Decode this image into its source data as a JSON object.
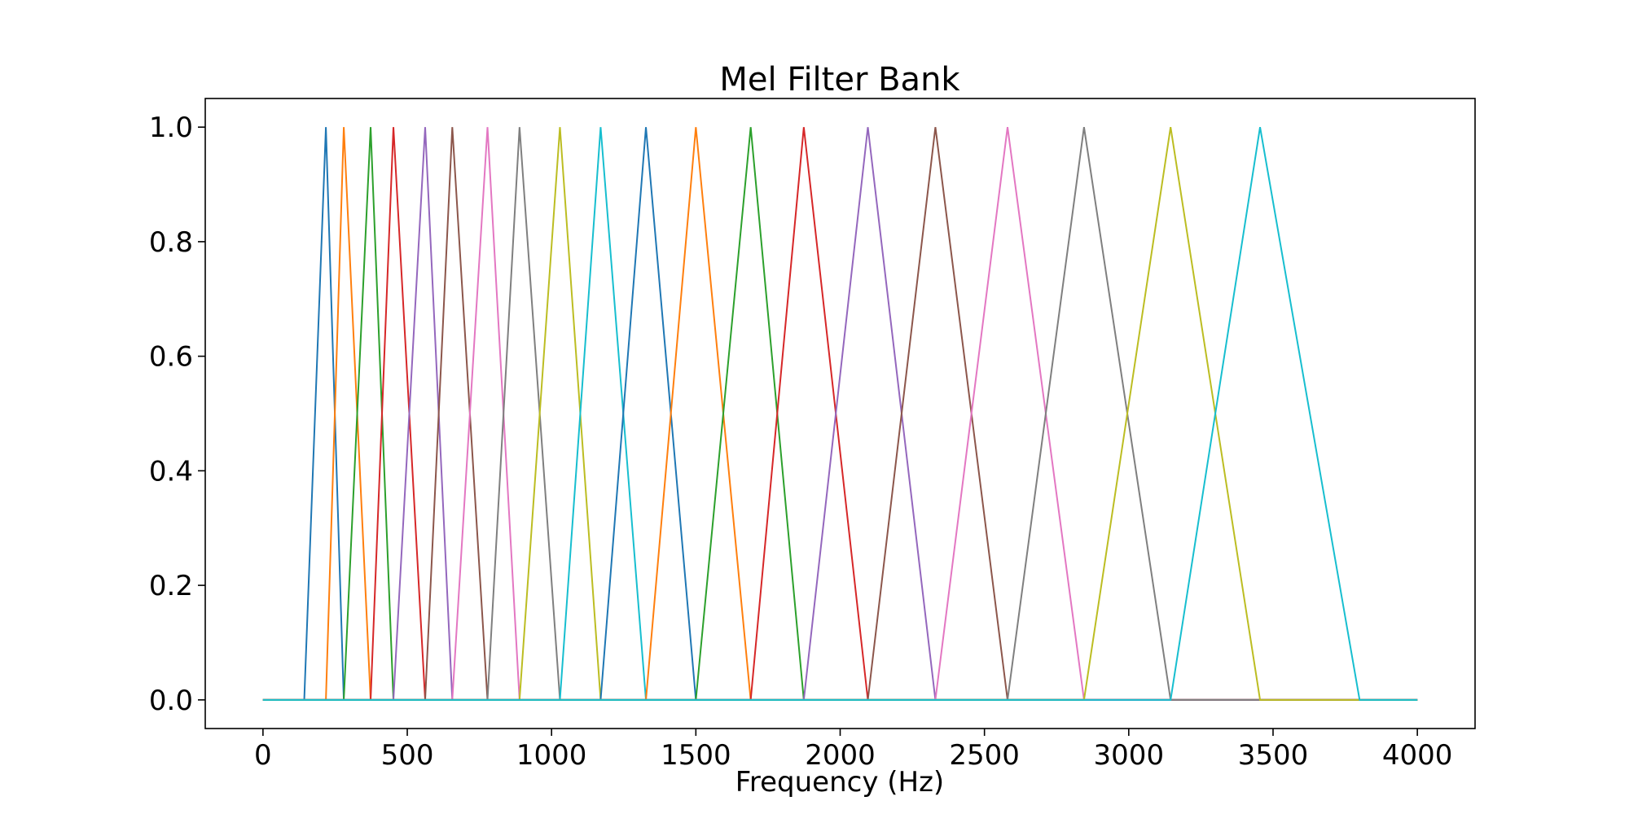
{
  "chart_data": {
    "type": "line",
    "title": "Mel Filter Bank",
    "xlabel": "Frequency (Hz)",
    "ylabel": "",
    "xlim": [
      -200,
      4200
    ],
    "ylim": [
      -0.05,
      1.05
    ],
    "xticks": [
      0,
      500,
      1000,
      1500,
      2000,
      2500,
      3000,
      3500,
      4000
    ],
    "xtick_labels": [
      "0",
      "500",
      "1000",
      "1500",
      "2000",
      "2500",
      "3000",
      "3500",
      "4000"
    ],
    "yticks": [
      0.0,
      0.2,
      0.4,
      0.6,
      0.8,
      1.0
    ],
    "ytick_labels": [
      "0.0",
      "0.2",
      "0.4",
      "0.6",
      "0.8",
      "1.0"
    ],
    "grid": false,
    "legend": "none",
    "x_range": [
      0,
      4000
    ],
    "filter_edges_hz": [
      143,
      218,
      280,
      373,
      452,
      562,
      656,
      778,
      889,
      1029,
      1170,
      1327,
      1500,
      1690,
      1874,
      2096,
      2330,
      2580,
      2845,
      3145,
      3455,
      3800
    ],
    "series": [
      {
        "color": "#1f77b4",
        "x": [
          0,
          143,
          218,
          280,
          4000
        ],
        "values": [
          0,
          0,
          1,
          0,
          0
        ]
      },
      {
        "color": "#ff7f0e",
        "x": [
          0,
          218,
          280,
          373,
          4000
        ],
        "values": [
          0,
          0,
          1,
          0,
          0
        ]
      },
      {
        "color": "#2ca02c",
        "x": [
          0,
          280,
          373,
          452,
          4000
        ],
        "values": [
          0,
          0,
          1,
          0,
          0
        ]
      },
      {
        "color": "#d62728",
        "x": [
          0,
          373,
          452,
          562,
          4000
        ],
        "values": [
          0,
          0,
          1,
          0,
          0
        ]
      },
      {
        "color": "#9467bd",
        "x": [
          0,
          452,
          562,
          656,
          4000
        ],
        "values": [
          0,
          0,
          1,
          0,
          0
        ]
      },
      {
        "color": "#8c564b",
        "x": [
          0,
          562,
          656,
          778,
          4000
        ],
        "values": [
          0,
          0,
          1,
          0,
          0
        ]
      },
      {
        "color": "#e377c2",
        "x": [
          0,
          656,
          778,
          889,
          4000
        ],
        "values": [
          0,
          0,
          1,
          0,
          0
        ]
      },
      {
        "color": "#7f7f7f",
        "x": [
          0,
          778,
          889,
          1029,
          4000
        ],
        "values": [
          0,
          0,
          1,
          0,
          0
        ]
      },
      {
        "color": "#bcbd22",
        "x": [
          0,
          889,
          1029,
          1170,
          4000
        ],
        "values": [
          0,
          0,
          1,
          0,
          0
        ]
      },
      {
        "color": "#17becf",
        "x": [
          0,
          1029,
          1170,
          1327,
          4000
        ],
        "values": [
          0,
          0,
          1,
          0,
          0
        ]
      },
      {
        "color": "#1f77b4",
        "x": [
          0,
          1170,
          1327,
          1500,
          4000
        ],
        "values": [
          0,
          0,
          1,
          0,
          0
        ]
      },
      {
        "color": "#ff7f0e",
        "x": [
          0,
          1327,
          1500,
          1690,
          4000
        ],
        "values": [
          0,
          0,
          1,
          0,
          0
        ]
      },
      {
        "color": "#2ca02c",
        "x": [
          0,
          1500,
          1690,
          1874,
          4000
        ],
        "values": [
          0,
          0,
          1,
          0,
          0
        ]
      },
      {
        "color": "#d62728",
        "x": [
          0,
          1690,
          1874,
          2096,
          4000
        ],
        "values": [
          0,
          0,
          1,
          0,
          0
        ]
      },
      {
        "color": "#9467bd",
        "x": [
          0,
          1874,
          2096,
          2330,
          4000
        ],
        "values": [
          0,
          0,
          1,
          0,
          0
        ]
      },
      {
        "color": "#8c564b",
        "x": [
          0,
          2096,
          2330,
          2580,
          4000
        ],
        "values": [
          0,
          0,
          1,
          0,
          0
        ]
      },
      {
        "color": "#e377c2",
        "x": [
          0,
          2330,
          2580,
          2845,
          4000
        ],
        "values": [
          0,
          0,
          1,
          0,
          0
        ]
      },
      {
        "color": "#7f7f7f",
        "x": [
          0,
          2580,
          2845,
          3145,
          4000
        ],
        "values": [
          0,
          0,
          1,
          0,
          0
        ]
      },
      {
        "color": "#bcbd22",
        "x": [
          0,
          2845,
          3145,
          3455,
          4000
        ],
        "values": [
          0,
          0,
          1,
          0,
          0
        ]
      },
      {
        "color": "#17becf",
        "x": [
          0,
          3145,
          3455,
          3800,
          4000
        ],
        "values": [
          0,
          0,
          1,
          0,
          0
        ]
      }
    ]
  }
}
